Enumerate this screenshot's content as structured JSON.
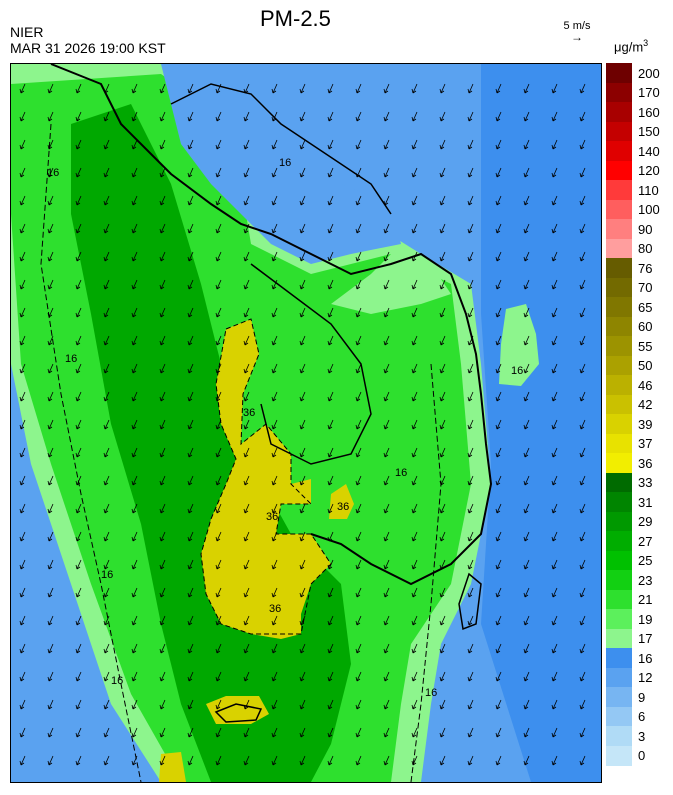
{
  "header": {
    "title": "PM-2.5",
    "agency": "NIER",
    "timestamp": "MAR 31 2026 19:00 KST",
    "wind_reference": "5 m/s",
    "unit_base": "μg/m",
    "unit_exp": "3"
  },
  "contour_labels": [
    "16",
    "16",
    "16",
    "16",
    "16",
    "16",
    "36",
    "36",
    "36",
    "36",
    "16",
    "16"
  ],
  "legend": {
    "labels": [
      "200",
      "170",
      "160",
      "150",
      "140",
      "120",
      "110",
      "100",
      "90",
      "80",
      "76",
      "70",
      "65",
      "60",
      "55",
      "50",
      "46",
      "42",
      "39",
      "37",
      "36",
      "33",
      "31",
      "29",
      "27",
      "25",
      "23",
      "21",
      "19",
      "17",
      "16",
      "12",
      "9",
      "6",
      "3",
      "0"
    ],
    "colors": [
      "#6e0000",
      "#8c0000",
      "#a80000",
      "#c40000",
      "#e00000",
      "#ff0000",
      "#ff3a3a",
      "#ff5e5e",
      "#ff7f7f",
      "#ff9e9e",
      "#665c00",
      "#736a00",
      "#807700",
      "#8e8500",
      "#9c9300",
      "#aba100",
      "#bbb100",
      "#cac100",
      "#d9d200",
      "#e8e200",
      "#f2ee00",
      "#006b00",
      "#008500",
      "#009900",
      "#00ad00",
      "#00c000",
      "#12d012",
      "#2ee02e",
      "#5cf05c",
      "#8df58d",
      "#3d8fee",
      "#5aa2f0",
      "#77b5f2",
      "#94c8f4",
      "#b0dbf6",
      "#c5e6f8"
    ]
  },
  "map_colors": {
    "low_blue": "#3d8fee",
    "light_blue": "#5aa2f0",
    "green_mid": "#2ee02e",
    "green_dark": "#00a800",
    "green_light": "#8df58d",
    "yellow": "#d9d200"
  }
}
